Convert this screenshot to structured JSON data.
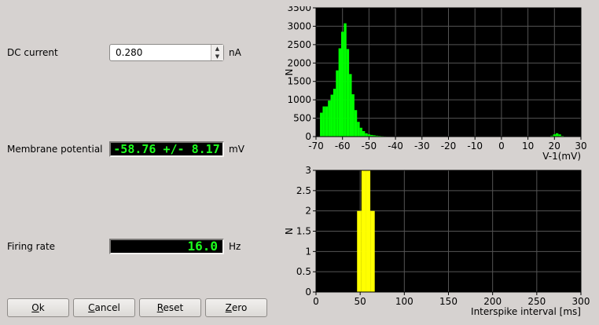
{
  "controls": {
    "dc_current_label": "DC current",
    "dc_current_value": "0.280",
    "dc_current_unit": "nA",
    "membrane_potential_label": "Membrane potential",
    "membrane_potential_value": "-58.76 +/- 8.17",
    "membrane_potential_unit": "mV",
    "firing_rate_label": "Firing rate",
    "firing_rate_value": "16.0",
    "firing_rate_unit": "Hz"
  },
  "buttons": {
    "ok_mnemonic": "O",
    "ok_rest": "k",
    "cancel_mnemonic": "C",
    "cancel_rest": "ancel",
    "reset_mnemonic": "R",
    "reset_rest": "eset",
    "zero_mnemonic": "Z",
    "zero_rest": "ero"
  },
  "colors": {
    "hist1": "#00ff00",
    "hist2": "#ffff00",
    "plot_bg": "#000000",
    "grid": "#555555",
    "lcd_text": "#1dff1d"
  },
  "chart_data": [
    {
      "type": "bar",
      "xlabel": "V-1(mV)",
      "ylabel": "N",
      "xlim": [
        -70,
        30
      ],
      "ylim": [
        0,
        3500
      ],
      "xticks": [
        -70,
        -60,
        -50,
        -40,
        -30,
        -20,
        -10,
        0,
        10,
        20,
        30
      ],
      "yticks": [
        0,
        500,
        1000,
        1500,
        2000,
        2500,
        3000,
        3500
      ],
      "grid": true,
      "bins": [
        {
          "x": -68,
          "v": 650
        },
        {
          "x": -67,
          "v": 820
        },
        {
          "x": -66,
          "v": 820
        },
        {
          "x": -65,
          "v": 980
        },
        {
          "x": -64,
          "v": 1140
        },
        {
          "x": -63,
          "v": 1300
        },
        {
          "x": -62,
          "v": 1800
        },
        {
          "x": -61,
          "v": 2400
        },
        {
          "x": -60,
          "v": 2850
        },
        {
          "x": -59,
          "v": 3080
        },
        {
          "x": -58,
          "v": 2380
        },
        {
          "x": -57,
          "v": 1700
        },
        {
          "x": -56,
          "v": 1150
        },
        {
          "x": -55,
          "v": 720
        },
        {
          "x": -54,
          "v": 400
        },
        {
          "x": -53,
          "v": 240
        },
        {
          "x": -52,
          "v": 150
        },
        {
          "x": -51,
          "v": 90
        },
        {
          "x": -50,
          "v": 60
        },
        {
          "x": -49,
          "v": 45
        },
        {
          "x": -48,
          "v": 35
        },
        {
          "x": -47,
          "v": 25
        },
        {
          "x": -46,
          "v": 20
        },
        {
          "x": -45,
          "v": 15
        },
        {
          "x": -44,
          "v": 12
        },
        {
          "x": -43,
          "v": 10
        },
        {
          "x": -42,
          "v": 8
        },
        {
          "x": -41,
          "v": 8
        },
        {
          "x": -40,
          "v": 6
        },
        {
          "x": -35,
          "v": 5
        },
        {
          "x": -25,
          "v": 5
        },
        {
          "x": -15,
          "v": 5
        },
        {
          "x": -5,
          "v": 5
        },
        {
          "x": 5,
          "v": 5
        },
        {
          "x": 15,
          "v": 10
        },
        {
          "x": 19,
          "v": 25
        },
        {
          "x": 20,
          "v": 60
        },
        {
          "x": 21,
          "v": 90
        },
        {
          "x": 22,
          "v": 60
        },
        {
          "x": 23,
          "v": 20
        }
      ],
      "bin_width": 1,
      "color": "#00ff00"
    },
    {
      "type": "bar",
      "xlabel": "Interspike interval [ms]",
      "ylabel": "N",
      "xlim": [
        0,
        300
      ],
      "ylim": [
        0,
        3
      ],
      "xticks": [
        0,
        50,
        100,
        150,
        200,
        250,
        300
      ],
      "yticks": [
        0,
        0.5,
        1,
        1.5,
        2,
        2.5,
        3
      ],
      "grid": true,
      "bins": [
        {
          "x": 49,
          "v": 2
        },
        {
          "x": 54,
          "v": 3
        },
        {
          "x": 59,
          "v": 3
        },
        {
          "x": 64,
          "v": 2
        }
      ],
      "bin_width": 5,
      "color": "#ffff00"
    }
  ]
}
